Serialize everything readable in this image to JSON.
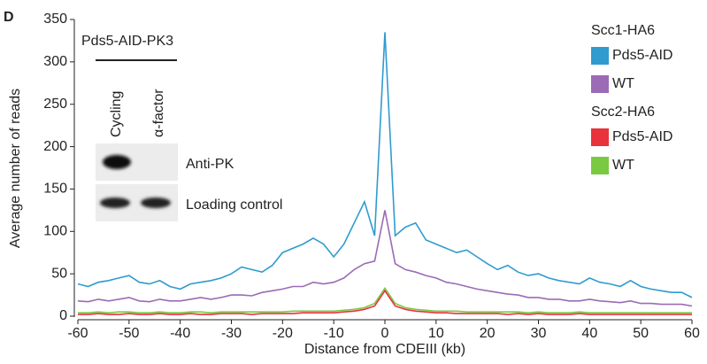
{
  "chart_data": {
    "type": "line",
    "panel_label": "D",
    "xlabel": "Distance from CDEIII (kb)",
    "ylabel": "Average number of reads",
    "x": [
      -60,
      -58,
      -56,
      -54,
      -52,
      -50,
      -48,
      -46,
      -44,
      -42,
      -40,
      -38,
      -36,
      -34,
      -32,
      -30,
      -28,
      -26,
      -24,
      -22,
      -20,
      -18,
      -16,
      -14,
      -12,
      -10,
      -8,
      -6,
      -4,
      -2,
      0,
      2,
      4,
      6,
      8,
      10,
      12,
      14,
      16,
      18,
      20,
      22,
      24,
      26,
      28,
      30,
      32,
      34,
      36,
      38,
      40,
      42,
      44,
      46,
      48,
      50,
      52,
      54,
      56,
      58,
      60
    ],
    "xlim": [
      -60,
      60
    ],
    "xticks": [
      -60,
      -50,
      -40,
      -30,
      -20,
      -10,
      0,
      10,
      20,
      30,
      40,
      50,
      60
    ],
    "ylim": [
      0,
      350
    ],
    "yticks": [
      0,
      50,
      100,
      150,
      200,
      250,
      300,
      350
    ],
    "series_groups": [
      {
        "name": "Scc1-HA6",
        "series": [
          {
            "name": "Pds5-AID",
            "color": "#2f9bcf",
            "values": [
              38,
              35,
              40,
              42,
              45,
              48,
              40,
              38,
              42,
              35,
              32,
              38,
              40,
              42,
              45,
              50,
              58,
              55,
              52,
              60,
              75,
              80,
              85,
              92,
              85,
              70,
              85,
              110,
              135,
              95,
              335,
              95,
              105,
              110,
              90,
              85,
              80,
              75,
              78,
              70,
              62,
              55,
              60,
              52,
              48,
              50,
              45,
              42,
              40,
              38,
              45,
              40,
              38,
              35,
              42,
              35,
              32,
              30,
              28,
              28,
              22
            ]
          },
          {
            "name": "WT",
            "color": "#9b6bb5",
            "values": [
              18,
              17,
              20,
              18,
              20,
              22,
              18,
              17,
              20,
              18,
              18,
              20,
              22,
              20,
              22,
              25,
              25,
              24,
              28,
              30,
              32,
              35,
              35,
              40,
              38,
              40,
              45,
              55,
              62,
              65,
              125,
              62,
              55,
              52,
              48,
              45,
              40,
              38,
              35,
              32,
              30,
              28,
              26,
              25,
              22,
              22,
              20,
              20,
              18,
              18,
              20,
              18,
              17,
              16,
              18,
              15,
              15,
              14,
              14,
              14,
              12
            ]
          }
        ]
      },
      {
        "name": "Scc2-HA6",
        "series": [
          {
            "name": "Pds5-AID",
            "color": "#e8323c",
            "values": [
              2,
              2,
              3,
              2,
              2,
              3,
              2,
              2,
              3,
              2,
              2,
              3,
              2,
              2,
              3,
              3,
              3,
              2,
              3,
              3,
              3,
              3,
              4,
              4,
              4,
              4,
              5,
              6,
              8,
              12,
              30,
              12,
              8,
              6,
              5,
              4,
              4,
              3,
              3,
              3,
              3,
              3,
              2,
              3,
              2,
              3,
              2,
              2,
              2,
              3,
              2,
              2,
              2,
              2,
              2,
              2,
              2,
              2,
              2,
              2,
              2
            ]
          },
          {
            "name": "WT",
            "color": "#7ac943",
            "values": [
              4,
              4,
              5,
              4,
              5,
              5,
              4,
              4,
              5,
              4,
              4,
              5,
              5,
              4,
              5,
              5,
              5,
              5,
              5,
              5,
              5,
              6,
              6,
              6,
              6,
              6,
              7,
              8,
              10,
              15,
              33,
              15,
              10,
              8,
              7,
              6,
              6,
              6,
              5,
              5,
              5,
              5,
              5,
              5,
              4,
              5,
              4,
              4,
              4,
              5,
              4,
              4,
              4,
              4,
              4,
              4,
              4,
              4,
              4,
              4,
              4
            ]
          }
        ]
      }
    ],
    "inset": {
      "title": "Pds5-AID-PK3",
      "lanes": [
        "Cycling",
        "α-factor"
      ],
      "rows": [
        "Anti-PK",
        "Loading control"
      ]
    }
  }
}
